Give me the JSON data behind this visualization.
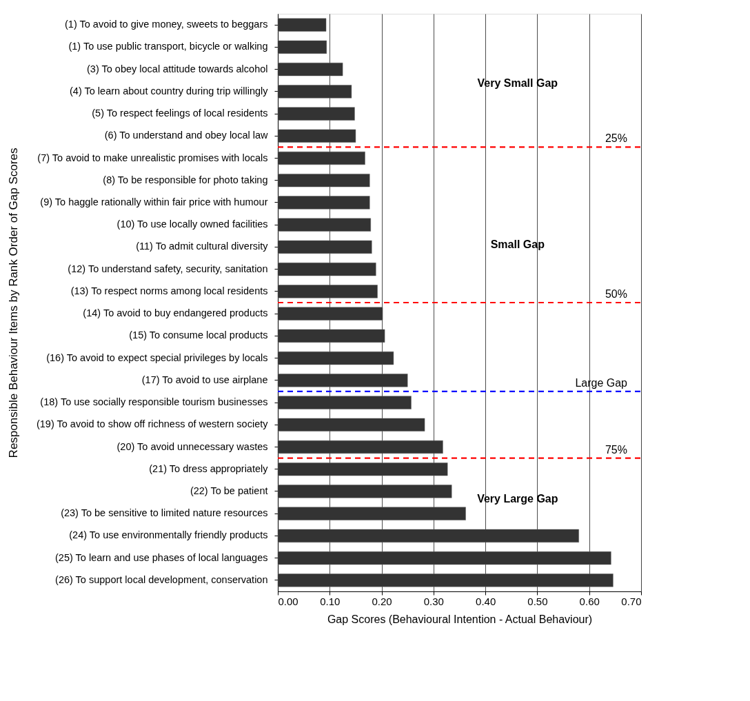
{
  "chart_data": {
    "type": "bar",
    "orientation": "horizontal",
    "xlabel": "Gap Scores (Behavioural Intention - Actual Behaviour)",
    "ylabel": "Responsible Behaviour Items by Rank Order of Gap Scores",
    "categories": [
      "(1) To avoid to give money, sweets to beggars",
      "(1) To use public transport, bicycle or walking",
      "(3) To obey local attitude towards alcohol",
      "(4) To learn about country during trip willingly",
      "(5) To respect feelings of local residents",
      "(6) To understand and obey local law",
      "(7) To avoid to make unrealistic promises with locals",
      "(8) To be responsible for photo taking",
      "(9) To haggle rationally within fair price with humour",
      "(10) To use locally owned facilities",
      "(11) To admit cultural diversity",
      "(12) To understand safety, security, sanitation",
      "(13) To respect norms among local residents",
      "(14) To avoid to buy endangered products",
      "(15) To consume local products",
      "(16) To avoid to expect special privileges by locals",
      "(17) To avoid to use airplane",
      "(18) To use socially responsible tourism businesses",
      "(19) To avoid to show off richness of western society",
      "(20) To avoid unnecessary wastes",
      "(21) To dress appropriately",
      "(22) To be patient",
      "(23) To be sensitive to limited nature resources",
      "(24) To use environmentally friendly products",
      "(25) To learn and use phases of local languages",
      "(26) To support local development,  conservation"
    ],
    "values": [
      0.093,
      0.094,
      0.125,
      0.142,
      0.148,
      0.15,
      0.168,
      0.177,
      0.177,
      0.179,
      0.181,
      0.189,
      0.192,
      0.202,
      0.206,
      0.223,
      0.25,
      0.257,
      0.283,
      0.318,
      0.327,
      0.335,
      0.362,
      0.58,
      0.642,
      0.646
    ],
    "color": "#333333",
    "xlim": [
      0,
      0.7
    ],
    "xticks": [
      {
        "value": 0,
        "label": "0.00"
      },
      {
        "value": 0.1,
        "label": "0.10"
      },
      {
        "value": 0.2,
        "label": "0.20"
      },
      {
        "value": 0.3,
        "label": "0.30"
      },
      {
        "value": 0.4,
        "label": "0.40"
      },
      {
        "value": 0.5,
        "label": "0.50"
      },
      {
        "value": 0.6,
        "label": "0.60"
      },
      {
        "value": 0.7,
        "label": "0.70"
      }
    ],
    "grid": "x",
    "ref_lines": [
      {
        "axis": "y",
        "value": "(6) To understand and obey local law",
        "label": "25%",
        "color": "#ff0000",
        "line_style": "dashed"
      },
      {
        "axis": "y",
        "value": "(13) To respect norms among local residents",
        "label": "50%",
        "color": "#ff0000",
        "line_style": "dashed"
      },
      {
        "axis": "y",
        "value": "(17) To avoid to use airplane",
        "label": "Large Gap",
        "color": "#0000ff",
        "line_style": "dashed"
      },
      {
        "axis": "y",
        "value": "(20) To avoid unnecessary wastes",
        "label": "75%",
        "color": "#ff0000",
        "line_style": "dashed"
      }
    ],
    "annotations": [
      "Very Small Gap",
      "Small Gap",
      "Very Large Gap"
    ]
  }
}
